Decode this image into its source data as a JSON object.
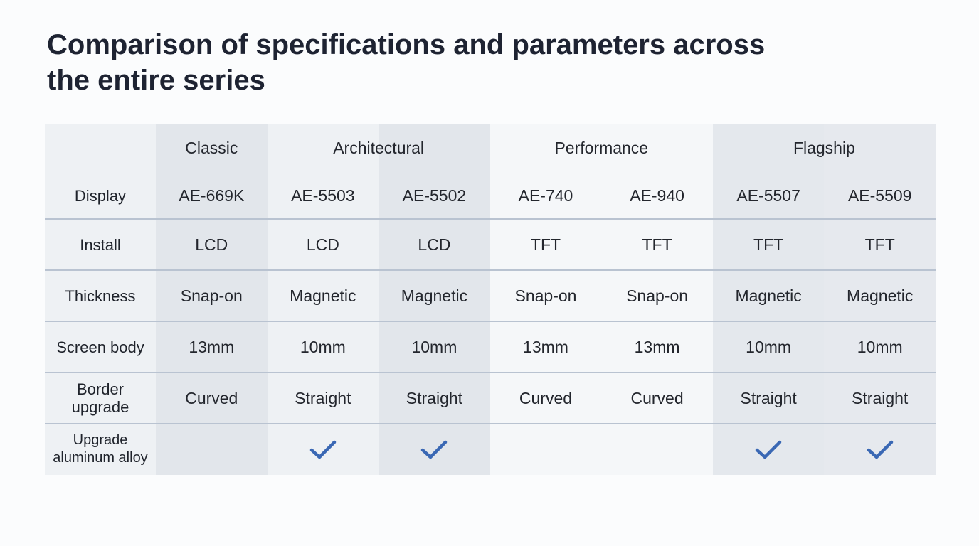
{
  "title": "Comparison of specifications and parameters across the entire series",
  "table": {
    "model_row_label": "Display",
    "groups": [
      {
        "name": "Classic",
        "models": [
          "AE-669K"
        ]
      },
      {
        "name": "Architectural",
        "models": [
          "AE-5503",
          "AE-5502"
        ]
      },
      {
        "name": "Performance",
        "models": [
          "AE-740",
          "AE-940"
        ]
      },
      {
        "name": "Flagship",
        "models": [
          "AE-5507",
          "AE-5509"
        ]
      }
    ],
    "rows": [
      {
        "label": "Install",
        "cells": [
          "LCD",
          "LCD",
          "LCD",
          "TFT",
          "TFT",
          "TFT",
          "TFT"
        ]
      },
      {
        "label": "Thickness",
        "cells": [
          "Snap-on",
          "Magnetic",
          "Magnetic",
          "Snap-on",
          "Snap-on",
          "Magnetic",
          "Magnetic"
        ]
      },
      {
        "label": "Screen body",
        "cells": [
          "13mm",
          "10mm",
          "10mm",
          "13mm",
          "13mm",
          "10mm",
          "10mm"
        ]
      },
      {
        "label": "Border upgrade",
        "cells": [
          "Curved",
          "Straight",
          "Straight",
          "Curved",
          "Curved",
          "Straight",
          "Straight"
        ]
      },
      {
        "label": "Upgrade aluminum alloy",
        "checks": [
          false,
          true,
          true,
          false,
          false,
          true,
          true
        ]
      }
    ]
  }
}
